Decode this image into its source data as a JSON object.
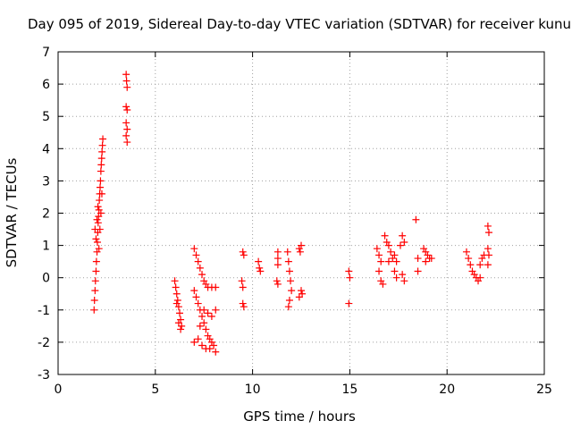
{
  "chart_data": {
    "type": "scatter",
    "title": "Day 095 of 2019, Sidereal Day-to-day VTEC variation (SDTVAR) for receiver kunu",
    "xlabel": "GPS time / hours",
    "ylabel": "SDTVAR / TECUs",
    "xlim": [
      0,
      25
    ],
    "ylim": [
      -3,
      7
    ],
    "xticks": [
      "0",
      "5",
      "10",
      "15",
      "20",
      "25"
    ],
    "yticks": [
      "-3",
      "-2",
      "-1",
      "0",
      "1",
      "2",
      "3",
      "4",
      "5",
      "6",
      "7"
    ],
    "grid": true,
    "marker": "+",
    "marker_color": "#ff0000",
    "series": [
      {
        "name": "SDTVAR",
        "points": [
          [
            1.85,
            -1.0
          ],
          [
            1.87,
            -0.7
          ],
          [
            1.9,
            -0.4
          ],
          [
            1.92,
            -0.1
          ],
          [
            1.95,
            0.2
          ],
          [
            1.97,
            0.5
          ],
          [
            2.0,
            0.8
          ],
          [
            2.02,
            1.1
          ],
          [
            2.04,
            1.4
          ],
          [
            2.06,
            1.7
          ],
          [
            2.08,
            1.9
          ],
          [
            2.1,
            2.1
          ],
          [
            2.12,
            2.4
          ],
          [
            2.14,
            2.6
          ],
          [
            2.16,
            2.8
          ],
          [
            2.18,
            3.0
          ],
          [
            2.2,
            3.3
          ],
          [
            2.22,
            3.5
          ],
          [
            2.24,
            3.7
          ],
          [
            2.26,
            3.9
          ],
          [
            2.28,
            4.1
          ],
          [
            2.3,
            4.3
          ],
          [
            1.9,
            1.5
          ],
          [
            1.95,
            1.2
          ],
          [
            2.0,
            1.8
          ],
          [
            2.05,
            2.2
          ],
          [
            2.1,
            0.9
          ],
          [
            2.15,
            1.5
          ],
          [
            2.2,
            2.0
          ],
          [
            2.25,
            2.6
          ],
          [
            3.5,
            6.3
          ],
          [
            3.52,
            6.1
          ],
          [
            3.55,
            5.9
          ],
          [
            3.5,
            5.3
          ],
          [
            3.55,
            5.2
          ],
          [
            3.5,
            4.8
          ],
          [
            3.55,
            4.6
          ],
          [
            3.5,
            4.4
          ],
          [
            3.55,
            4.2
          ],
          [
            6.0,
            -0.1
          ],
          [
            6.05,
            -0.3
          ],
          [
            6.1,
            -0.5
          ],
          [
            6.15,
            -0.7
          ],
          [
            6.2,
            -0.9
          ],
          [
            6.25,
            -1.1
          ],
          [
            6.3,
            -1.3
          ],
          [
            6.35,
            -1.5
          ],
          [
            6.1,
            -0.8
          ],
          [
            6.2,
            -1.4
          ],
          [
            6.3,
            -1.6
          ],
          [
            7.0,
            0.9
          ],
          [
            7.1,
            0.7
          ],
          [
            7.2,
            0.5
          ],
          [
            7.3,
            0.3
          ],
          [
            7.4,
            0.1
          ],
          [
            7.5,
            -0.1
          ],
          [
            7.6,
            -0.2
          ],
          [
            7.7,
            -0.3
          ],
          [
            7.9,
            -0.3
          ],
          [
            8.1,
            -0.3
          ],
          [
            7.0,
            -0.4
          ],
          [
            7.1,
            -0.6
          ],
          [
            7.2,
            -0.8
          ],
          [
            7.3,
            -1.0
          ],
          [
            7.4,
            -1.2
          ],
          [
            7.5,
            -1.4
          ],
          [
            7.6,
            -1.6
          ],
          [
            7.7,
            -1.8
          ],
          [
            7.8,
            -1.9
          ],
          [
            7.9,
            -2.0
          ],
          [
            8.0,
            -2.1
          ],
          [
            8.1,
            -2.3
          ],
          [
            7.0,
            -2.0
          ],
          [
            7.2,
            -1.9
          ],
          [
            7.4,
            -2.1
          ],
          [
            7.6,
            -2.2
          ],
          [
            7.8,
            -2.2
          ],
          [
            7.5,
            -1.0
          ],
          [
            7.7,
            -1.1
          ],
          [
            7.9,
            -1.2
          ],
          [
            8.1,
            -1.0
          ],
          [
            7.3,
            -1.5
          ],
          [
            9.5,
            0.8
          ],
          [
            9.55,
            0.7
          ],
          [
            9.45,
            -0.1
          ],
          [
            9.5,
            -0.3
          ],
          [
            9.5,
            -0.8
          ],
          [
            9.55,
            -0.9
          ],
          [
            10.3,
            0.5
          ],
          [
            10.35,
            0.3
          ],
          [
            10.4,
            0.2
          ],
          [
            11.3,
            0.8
          ],
          [
            11.3,
            0.6
          ],
          [
            11.3,
            0.4
          ],
          [
            11.25,
            -0.1
          ],
          [
            11.3,
            -0.2
          ],
          [
            11.8,
            0.8
          ],
          [
            11.85,
            0.5
          ],
          [
            11.9,
            0.2
          ],
          [
            11.95,
            -0.1
          ],
          [
            12.0,
            -0.4
          ],
          [
            11.9,
            -0.7
          ],
          [
            11.85,
            -0.9
          ],
          [
            12.4,
            0.9
          ],
          [
            12.5,
            1.0
          ],
          [
            12.45,
            0.8
          ],
          [
            12.5,
            -0.4
          ],
          [
            12.55,
            -0.5
          ],
          [
            12.4,
            -0.6
          ],
          [
            14.95,
            0.2
          ],
          [
            15.0,
            0.0
          ],
          [
            14.95,
            -0.8
          ],
          [
            16.4,
            0.9
          ],
          [
            16.5,
            0.7
          ],
          [
            16.6,
            0.5
          ],
          [
            16.5,
            0.2
          ],
          [
            16.6,
            -0.1
          ],
          [
            16.7,
            -0.2
          ],
          [
            16.8,
            1.3
          ],
          [
            16.9,
            1.1
          ],
          [
            17.0,
            1.0
          ],
          [
            17.1,
            0.8
          ],
          [
            17.0,
            0.5
          ],
          [
            17.2,
            0.6
          ],
          [
            17.3,
            0.7
          ],
          [
            17.4,
            0.5
          ],
          [
            17.3,
            0.2
          ],
          [
            17.4,
            0.0
          ],
          [
            17.6,
            1.0
          ],
          [
            17.7,
            1.3
          ],
          [
            17.8,
            1.1
          ],
          [
            17.7,
            0.1
          ],
          [
            17.8,
            -0.1
          ],
          [
            18.4,
            1.8
          ],
          [
            18.5,
            0.6
          ],
          [
            18.5,
            0.2
          ],
          [
            18.8,
            0.9
          ],
          [
            18.9,
            0.8
          ],
          [
            19.0,
            0.7
          ],
          [
            19.1,
            0.6
          ],
          [
            19.2,
            0.6
          ],
          [
            18.9,
            0.5
          ],
          [
            21.0,
            0.8
          ],
          [
            21.1,
            0.6
          ],
          [
            21.2,
            0.4
          ],
          [
            21.3,
            0.2
          ],
          [
            21.4,
            0.1
          ],
          [
            21.5,
            0.0
          ],
          [
            21.6,
            -0.1
          ],
          [
            21.7,
            0.0
          ],
          [
            21.8,
            0.6
          ],
          [
            21.9,
            0.7
          ],
          [
            21.7,
            0.4
          ],
          [
            22.1,
            1.6
          ],
          [
            22.15,
            1.4
          ],
          [
            22.1,
            0.9
          ],
          [
            22.15,
            0.7
          ],
          [
            22.1,
            0.4
          ]
        ]
      }
    ]
  }
}
